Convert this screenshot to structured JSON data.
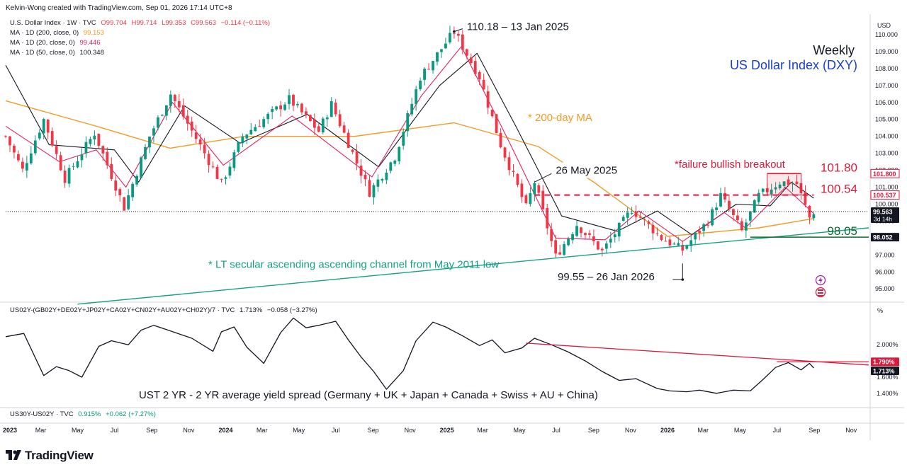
{
  "header": {
    "credit": "Kelvin-Wong created with TradingView.com, Sep 01, 2026 17:14 UTC+8",
    "brand": "TradingView"
  },
  "legend": {
    "main": {
      "symbol": "U.S. Dollar Index · 1W · TVC",
      "open": "O99.704",
      "high": "H99.714",
      "low": "L99.353",
      "close": "C99.563",
      "change": "−0.114 (−0.11%)"
    },
    "ma200": {
      "label": "MA · 1D (200, close, 0)",
      "value": "99.153",
      "color": "#f59a23"
    },
    "ma20": {
      "label": "MA · 1D (20, close, 0)",
      "value": "99.446",
      "color": "#e91e63"
    },
    "ma50": {
      "label": "MA · 1D (50, close, 0)",
      "value": "100.348",
      "color": "#131722"
    },
    "spread": {
      "label": "US02Y-(GB02Y+DE02Y+JP02Y+CA02Y+CN02Y+AU02Y+CH02Y)/7 · TVC",
      "value": "1.713%",
      "change": "−0.058 (−3.27%)"
    },
    "pane3": {
      "label": "US30Y-US02Y · TVC",
      "value": "0.915%",
      "change": "+0.062 (+7.27%)"
    }
  },
  "chart_data": [
    {
      "type": "candlestick",
      "title": "Weekly",
      "subtitle": "US Dollar Index (DXY)",
      "currency": "USD",
      "ylim": [
        94.3,
        111.0
      ],
      "y_ticks": [
        "110.000",
        "109.000",
        "108.000",
        "107.000",
        "106.000",
        "105.000",
        "104.000",
        "103.000",
        "102.000",
        "101.000",
        "100.000",
        "99.000",
        "98.000",
        "97.000",
        "96.000",
        "95.000"
      ],
      "x_ticks": [
        "2023",
        "Mar",
        "May",
        "Jul",
        "Sep",
        "Nov",
        "2024",
        "Mar",
        "May",
        "Jul",
        "Sep",
        "Nov",
        "2025",
        "Mar",
        "May",
        "Jul",
        "Sep",
        "Nov",
        "2026",
        "Mar",
        "May",
        "Jul",
        "Sep",
        "Nov"
      ],
      "x_start": "2023-01-02",
      "x_end": "2026-11-30",
      "close_path": [
        [
          "2023-01-02",
          104.0
        ],
        [
          "2023-01-30",
          102.0
        ],
        [
          "2023-03-06",
          105.0
        ],
        [
          "2023-04-10",
          101.5
        ],
        [
          "2023-05-29",
          104.2
        ],
        [
          "2023-07-17",
          99.8
        ],
        [
          "2023-08-28",
          104.0
        ],
        [
          "2023-10-02",
          106.5
        ],
        [
          "2023-11-27",
          103.0
        ],
        [
          "2023-12-25",
          101.2
        ],
        [
          "2024-01-29",
          104.0
        ],
        [
          "2024-04-15",
          106.2
        ],
        [
          "2024-06-03",
          104.3
        ],
        [
          "2024-06-24",
          105.9
        ],
        [
          "2024-08-26",
          100.7
        ],
        [
          "2024-10-07",
          102.8
        ],
        [
          "2024-11-18",
          107.5
        ],
        [
          "2025-01-13",
          110.18
        ],
        [
          "2025-02-24",
          107.5
        ],
        [
          "2025-03-31",
          103.5
        ],
        [
          "2025-05-12",
          99.8
        ],
        [
          "2025-05-26",
          101.3
        ],
        [
          "2025-06-30",
          96.9
        ],
        [
          "2025-08-04",
          98.8
        ],
        [
          "2025-09-15",
          97.2
        ],
        [
          "2025-11-03",
          99.7
        ],
        [
          "2025-12-22",
          98.0
        ],
        [
          "2026-01-26",
          97.3
        ],
        [
          "2026-03-09",
          99.0
        ],
        [
          "2026-03-30",
          100.5
        ],
        [
          "2026-05-04",
          98.4
        ],
        [
          "2026-06-01",
          100.5
        ],
        [
          "2026-07-06",
          101.3
        ],
        [
          "2026-08-03",
          101.2
        ],
        [
          "2026-08-24",
          99.2
        ],
        [
          "2026-08-31",
          99.563
        ]
      ],
      "ma200": [
        [
          "2023-01-02",
          106.1
        ],
        [
          "2023-06-01",
          104.6
        ],
        [
          "2023-10-01",
          103.3
        ],
        [
          "2024-02-01",
          104.0
        ],
        [
          "2024-08-01",
          104.0
        ],
        [
          "2025-01-13",
          104.8
        ],
        [
          "2025-06-01",
          103.4
        ],
        [
          "2025-09-01",
          101.3
        ],
        [
          "2026-01-01",
          98.1
        ],
        [
          "2026-06-01",
          98.6
        ],
        [
          "2026-08-31",
          99.153
        ]
      ],
      "ma20": [
        [
          "2023-01-02",
          104.6
        ],
        [
          "2023-04-01",
          102.5
        ],
        [
          "2023-06-01",
          103.2
        ],
        [
          "2023-07-20",
          101.0
        ],
        [
          "2023-10-05",
          106.0
        ],
        [
          "2023-12-28",
          102.3
        ],
        [
          "2024-04-20",
          105.2
        ],
        [
          "2024-08-30",
          101.6
        ],
        [
          "2024-11-20",
          106.4
        ],
        [
          "2025-01-25",
          109.3
        ],
        [
          "2025-04-15",
          103.6
        ],
        [
          "2025-06-30",
          98.0
        ],
        [
          "2025-09-20",
          97.9
        ],
        [
          "2025-11-15",
          99.6
        ],
        [
          "2026-01-26",
          97.8
        ],
        [
          "2026-04-05",
          99.5
        ],
        [
          "2026-05-10",
          98.6
        ],
        [
          "2026-07-15",
          101.0
        ],
        [
          "2026-08-31",
          99.446
        ]
      ],
      "ma50": [
        [
          "2023-01-02",
          108.2
        ],
        [
          "2023-03-15",
          103.5
        ],
        [
          "2023-07-01",
          103.2
        ],
        [
          "2023-08-10",
          101.3
        ],
        [
          "2023-10-25",
          105.8
        ],
        [
          "2024-01-25",
          103.6
        ],
        [
          "2024-05-15",
          105.3
        ],
        [
          "2024-09-10",
          102.2
        ],
        [
          "2024-12-20",
          107.0
        ],
        [
          "2025-02-20",
          108.9
        ],
        [
          "2025-04-25",
          104.6
        ],
        [
          "2025-07-10",
          99.3
        ],
        [
          "2025-10-10",
          98.4
        ],
        [
          "2025-12-15",
          99.6
        ],
        [
          "2026-02-10",
          98.2
        ],
        [
          "2026-04-25",
          100.0
        ],
        [
          "2026-06-20",
          99.9
        ],
        [
          "2026-07-25",
          101.3
        ],
        [
          "2026-08-31",
          100.348
        ]
      ],
      "levels": [
        {
          "value": 101.8,
          "label": "101.80",
          "badge": "101.800",
          "color": "#e0193a",
          "style": "solid"
        },
        {
          "value": 100.537,
          "label": "100.54",
          "badge": "100.537",
          "color": "#e0193a",
          "style": "dashed"
        },
        {
          "value": 98.052,
          "label": "98.05",
          "badge": "98.052",
          "color": "#0b6b2c",
          "style": "solid"
        }
      ],
      "last_price": {
        "value": 99.563,
        "badge": "99.563",
        "countdown": "3d 14h"
      },
      "channel": {
        "from": [
          "2023-05-01",
          94.1
        ],
        "to": [
          "2026-11-30",
          98.6
        ],
        "color": "#16a085"
      },
      "annotations": [
        {
          "text": "110.18 – 13 Jan 2025",
          "date": "2025-01-13",
          "value": 110.18
        },
        {
          "text": "26 May 2025",
          "date": "2025-05-26",
          "value": 101.3
        },
        {
          "text": "99.55 – 26 Jan 2026",
          "date": "2026-01-26",
          "value": 96.5
        },
        {
          "text": "* 200-day MA",
          "color": "#f59a23"
        },
        {
          "text": "*failure bullish breakout",
          "color": "#e0193a"
        },
        {
          "text": "* LT secular ascending ascending channel from May 2011 low",
          "color": "#16a085"
        }
      ]
    },
    {
      "type": "line",
      "title": "UST 2 YR - 2 YR average yield spread (Germany + UK + Japan + Canada + Swiss + AU + China)",
      "unit": "%",
      "ylim": [
        1.25,
        2.5
      ],
      "y_ticks": [
        "2.000%",
        "1.800%",
        "1.600%",
        "1.400%"
      ],
      "path": [
        [
          "2023-01-02",
          2.1
        ],
        [
          "2023-02-01",
          2.14
        ],
        [
          "2023-03-06",
          1.62
        ],
        [
          "2023-03-27",
          1.73
        ],
        [
          "2023-04-17",
          1.68
        ],
        [
          "2023-05-08",
          1.6
        ],
        [
          "2023-06-05",
          1.98
        ],
        [
          "2023-06-26",
          2.05
        ],
        [
          "2023-07-24",
          2.0
        ],
        [
          "2023-08-14",
          2.18
        ],
        [
          "2023-09-04",
          2.24
        ],
        [
          "2023-10-02",
          2.17
        ],
        [
          "2023-11-06",
          2.08
        ],
        [
          "2023-12-11",
          1.92
        ],
        [
          "2023-12-25",
          2.16
        ],
        [
          "2024-01-15",
          2.22
        ],
        [
          "2024-02-05",
          1.97
        ],
        [
          "2024-03-04",
          1.77
        ],
        [
          "2024-04-01",
          2.15
        ],
        [
          "2024-04-22",
          2.33
        ],
        [
          "2024-05-13",
          2.21
        ],
        [
          "2024-06-03",
          2.24
        ],
        [
          "2024-07-01",
          2.29
        ],
        [
          "2024-07-22",
          2.06
        ],
        [
          "2024-08-12",
          1.85
        ],
        [
          "2024-09-02",
          1.67
        ],
        [
          "2024-09-23",
          1.45
        ],
        [
          "2024-10-21",
          1.68
        ],
        [
          "2024-11-11",
          2.05
        ],
        [
          "2024-12-09",
          2.28
        ],
        [
          "2024-12-30",
          2.22
        ],
        [
          "2025-01-27",
          2.11
        ],
        [
          "2025-02-24",
          1.99
        ],
        [
          "2025-03-17",
          2.06
        ],
        [
          "2025-04-07",
          1.9
        ],
        [
          "2025-05-05",
          1.96
        ],
        [
          "2025-05-26",
          2.08
        ],
        [
          "2025-06-23",
          2.0
        ],
        [
          "2025-07-21",
          1.91
        ],
        [
          "2025-08-18",
          1.8
        ],
        [
          "2025-09-15",
          1.67
        ],
        [
          "2025-10-13",
          1.56
        ],
        [
          "2025-11-10",
          1.58
        ],
        [
          "2025-12-15",
          1.46
        ],
        [
          "2026-01-05",
          1.43
        ],
        [
          "2026-02-02",
          1.42
        ],
        [
          "2026-02-23",
          1.44
        ],
        [
          "2026-03-23",
          1.4
        ],
        [
          "2026-04-20",
          1.44
        ],
        [
          "2026-05-18",
          1.43
        ],
        [
          "2026-06-08",
          1.57
        ],
        [
          "2026-06-29",
          1.72
        ],
        [
          "2026-07-20",
          1.78
        ],
        [
          "2026-08-10",
          1.69
        ],
        [
          "2026-08-24",
          1.77
        ],
        [
          "2026-08-31",
          1.713
        ]
      ],
      "trendline": {
        "from": [
          "2025-05-12",
          2.02
        ],
        "to": [
          "2026-11-30",
          1.75
        ],
        "color": "#e0193a"
      },
      "resistance": {
        "value": 1.79,
        "from": "2026-07-01",
        "to": "2026-11-30",
        "color": "#e0193a"
      },
      "badges": [
        {
          "text": "1.790%",
          "value": 1.79,
          "color": "#e0193a"
        },
        {
          "text": "1.713%",
          "value": 1.713,
          "color": "#131722"
        }
      ]
    }
  ]
}
